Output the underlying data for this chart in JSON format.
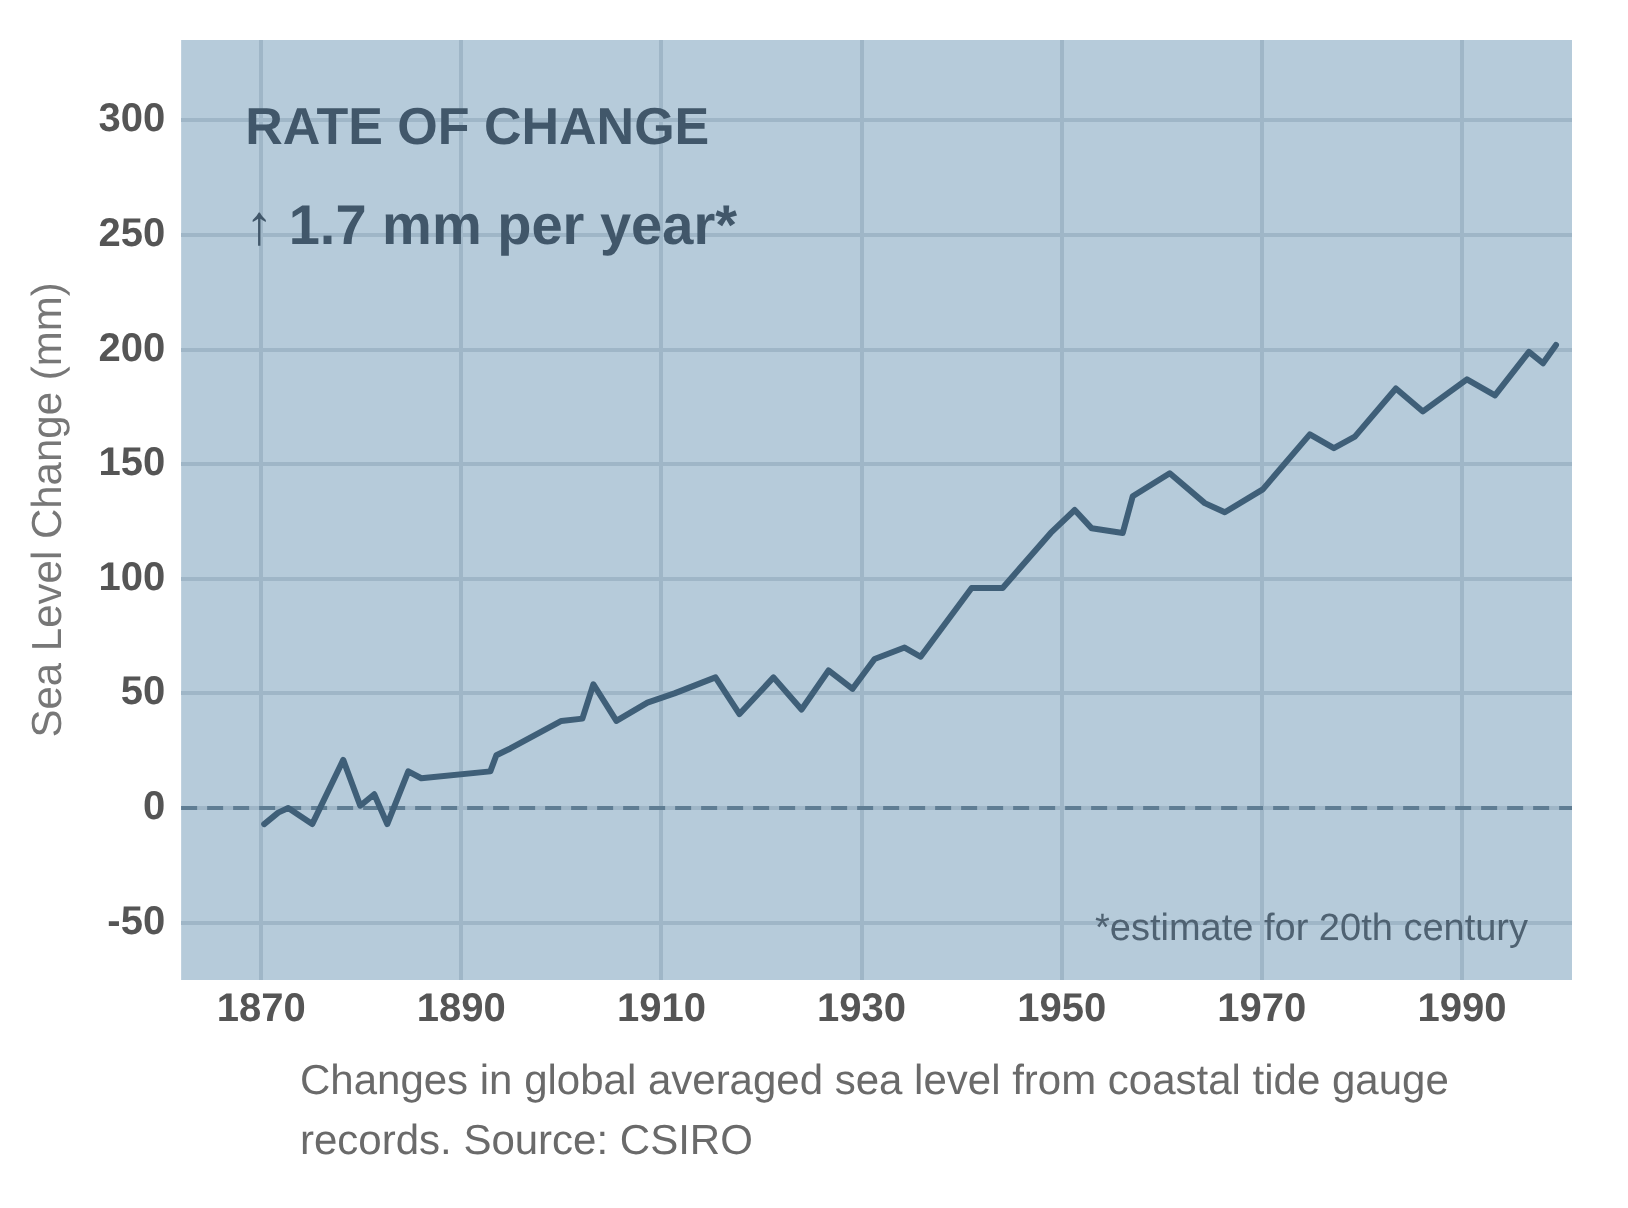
{
  "chart_data": {
    "type": "line",
    "title": "RATE OF CHANGE",
    "subtitle": "↑ 1.7 mm per year*",
    "ylabel": "Sea Level Change (mm)",
    "x": [
      1870.3,
      1871.7,
      1872.7,
      1875.1,
      1878.2,
      1879.9,
      1881.3,
      1882.6,
      1884.7,
      1886,
      1892.9,
      1893.5,
      1894.9,
      1900,
      1902.1,
      1903.2,
      1905.5,
      1908.6,
      1911.3,
      1915.4,
      1917.8,
      1921.2,
      1924,
      1926.7,
      1929.1,
      1931.3,
      1934.3,
      1935.9,
      1941,
      1944.1,
      1948.9,
      1951.3,
      1953,
      1956.1,
      1957.1,
      1960.8,
      1964.3,
      1966.3,
      1970.1,
      1974.8,
      1977.2,
      1979.3,
      1983.4,
      1986.1,
      1990.5,
      1993.3,
      1996.7,
      1998.1,
      1999.4
    ],
    "series": [
      {
        "color": "#3f5f78",
        "values": [
          -7,
          -2,
          0,
          -7,
          21,
          1,
          6,
          -7,
          16,
          13,
          16,
          23,
          26,
          38,
          39,
          54,
          38,
          46,
          50,
          57,
          41,
          57,
          43,
          60,
          52,
          65,
          70,
          66,
          96,
          96,
          120,
          130,
          122,
          120,
          136,
          146,
          133,
          129,
          139,
          163,
          157,
          162,
          183,
          173,
          187,
          180,
          199,
          194,
          202
        ]
      }
    ],
    "xlim": [
      1862,
      2001
    ],
    "xticks": [
      1870,
      1890,
      1910,
      1930,
      1950,
      1970,
      1990
    ],
    "ylim": [
      -75,
      335
    ],
    "yticks": [
      -50,
      0,
      50,
      100,
      150,
      200,
      250,
      300
    ],
    "grid": true,
    "legend": false,
    "marker": "none",
    "line_style": "solid",
    "ref_lines": [
      {
        "axis": "y",
        "value": 0,
        "color": "#5f7d93",
        "line_style": "dashed"
      }
    ],
    "annotations": [
      "*estimate for 20th century",
      "Changes in global averaged sea level from coastal tide gauge records. Source: CSIRO"
    ]
  }
}
